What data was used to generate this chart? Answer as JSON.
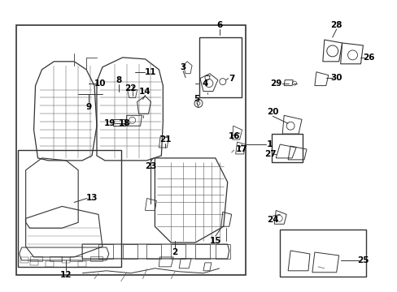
{
  "bg_color": "#ffffff",
  "lc": "#333333",
  "fig_width": 4.89,
  "fig_height": 3.6,
  "dpi": 100
}
